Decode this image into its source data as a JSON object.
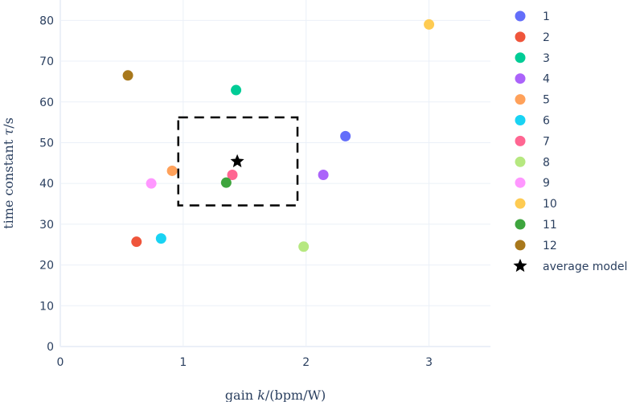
{
  "chart_data": {
    "type": "scatter",
    "xlabel": "gain k/(bpm/W)",
    "ylabel": "time constant τ/s",
    "xlim": [
      0,
      3.5
    ],
    "ylim": [
      0,
      85
    ],
    "x_ticks": [
      "0",
      "1",
      "2",
      "3"
    ],
    "y_ticks": [
      "0",
      "10",
      "20",
      "30",
      "40",
      "50",
      "60",
      "70",
      "80"
    ],
    "grid": true,
    "legend_position": "right",
    "series": [
      {
        "name": "1",
        "x": [
          2.32
        ],
        "y": [
          51.6
        ],
        "color": "#636efa"
      },
      {
        "name": "2",
        "x": [
          0.62
        ],
        "y": [
          25.7
        ],
        "color": "#ef553b"
      },
      {
        "name": "3",
        "x": [
          1.43
        ],
        "y": [
          62.9
        ],
        "color": "#00cc96"
      },
      {
        "name": "4",
        "x": [
          2.14
        ],
        "y": [
          42.1
        ],
        "color": "#ab63fa"
      },
      {
        "name": "5",
        "x": [
          0.91
        ],
        "y": [
          43.1
        ],
        "color": "#ffa15a"
      },
      {
        "name": "6",
        "x": [
          0.82
        ],
        "y": [
          26.5
        ],
        "color": "#19d3f3"
      },
      {
        "name": "7",
        "x": [
          1.4
        ],
        "y": [
          42.1
        ],
        "color": "#ff6692"
      },
      {
        "name": "8",
        "x": [
          1.98
        ],
        "y": [
          24.5
        ],
        "color": "#b6e880"
      },
      {
        "name": "9",
        "x": [
          0.74
        ],
        "y": [
          40.0
        ],
        "color": "#ff97ff"
      },
      {
        "name": "10",
        "x": [
          3.0
        ],
        "y": [
          79.0
        ],
        "color": "#fecb52"
      },
      {
        "name": "11",
        "x": [
          1.35
        ],
        "y": [
          40.2
        ],
        "color": "#3ea53e"
      },
      {
        "name": "12",
        "x": [
          0.55
        ],
        "y": [
          66.5
        ],
        "color": "#a8781c"
      },
      {
        "name": "average model",
        "x": [
          1.44
        ],
        "y": [
          45.4
        ],
        "color": "#000000",
        "marker": "star"
      }
    ],
    "annotations": [
      {
        "type": "dashed-rectangle",
        "x0": 0.96,
        "x1": 1.93,
        "y0": 34.6,
        "y1": 56.2,
        "color": "#000000"
      }
    ]
  }
}
